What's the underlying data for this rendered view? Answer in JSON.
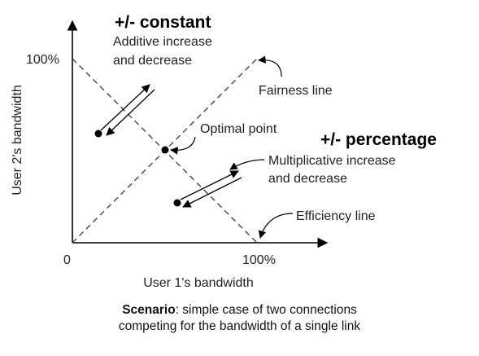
{
  "axes": {
    "y_label": "User 2's bandwidth",
    "x_label": "User 1's bandwidth",
    "y_max_label": "100%",
    "x_max_label": "100%",
    "origin_label": "0"
  },
  "headings": {
    "additive": "+/- constant",
    "multiplicative": "+/- percentage"
  },
  "annotations": {
    "additive_line1": "Additive increase",
    "additive_line2": "and decrease",
    "fairness": "Fairness line",
    "optimal": "Optimal point",
    "multiplicative_line1": "Multiplicative increase",
    "multiplicative_line2": "and decrease",
    "efficiency": "Efficiency line"
  },
  "caption": {
    "bold": "Scenario",
    "line1_rest": ": simple case of two connections",
    "line2": "competing for the bandwidth of a single link"
  }
}
